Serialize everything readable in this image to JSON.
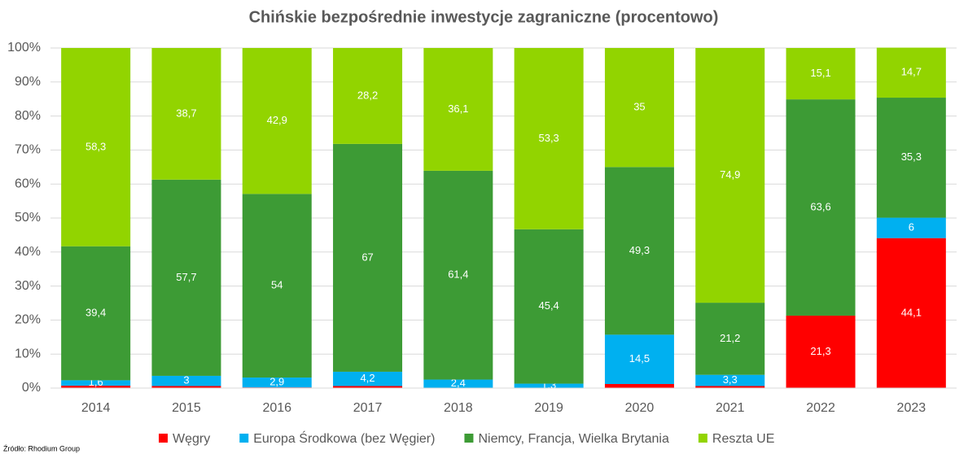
{
  "chart_data": {
    "type": "stacked_bar_percent",
    "title": "Chińskie bezpośrednie inwestycje zagraniczne (procentowo)",
    "source": "Źródło: Rhodium Group",
    "categories": [
      "2014",
      "2015",
      "2016",
      "2017",
      "2018",
      "2019",
      "2020",
      "2021",
      "2022",
      "2023"
    ],
    "series": [
      {
        "name": "Węgry",
        "color": "#ff0000",
        "values": [
          0.7,
          0.6,
          0.2,
          0.6,
          0.1,
          0,
          1.2,
          0.6,
          21.3,
          44.1
        ],
        "value_labels": [
          null,
          null,
          null,
          null,
          null,
          null,
          null,
          null,
          "21,3",
          "44,1"
        ]
      },
      {
        "name": "Europa Środkowa (bez Węgier)",
        "color": "#00b0f0",
        "values": [
          1.6,
          3,
          2.9,
          4.2,
          2.4,
          1.3,
          14.5,
          3.3,
          0,
          6
        ],
        "value_labels": [
          "1,6",
          "3",
          "2,9",
          "4,2",
          "2,4",
          "1,3",
          "14,5",
          "3,3",
          null,
          "6"
        ]
      },
      {
        "name": "Niemcy, Francja, Wielka Brytania",
        "color": "#3d9b35",
        "values": [
          39.4,
          57.7,
          54,
          67,
          61.4,
          45.4,
          49.3,
          21.2,
          63.6,
          35.3
        ],
        "value_labels": [
          "39,4",
          "57,7",
          "54",
          "67",
          "61,4",
          "45,4",
          "49,3",
          "21,2",
          "63,6",
          "35,3"
        ]
      },
      {
        "name": "Reszta UE",
        "color": "#92d400",
        "values": [
          58.3,
          38.7,
          42.9,
          28.2,
          36.1,
          53.3,
          35,
          74.9,
          15.1,
          14.7
        ],
        "value_labels": [
          "58,3",
          "38,7",
          "42,9",
          "28,2",
          "36,1",
          "53,3",
          "35",
          "74,9",
          "15,1",
          "14,7"
        ]
      }
    ],
    "ylim": [
      0,
      100
    ],
    "yticks": [
      {
        "value": 0,
        "label": "0%"
      },
      {
        "value": 10,
        "label": "10%"
      },
      {
        "value": 20,
        "label": "20%"
      },
      {
        "value": 30,
        "label": "30%"
      },
      {
        "value": 40,
        "label": "40%"
      },
      {
        "value": 50,
        "label": "50%"
      },
      {
        "value": 60,
        "label": "60%"
      },
      {
        "value": 70,
        "label": "70%"
      },
      {
        "value": 80,
        "label": "80%"
      },
      {
        "value": 90,
        "label": "90%"
      },
      {
        "value": 100,
        "label": "100%"
      }
    ],
    "grid": true,
    "legend": "bottom"
  }
}
